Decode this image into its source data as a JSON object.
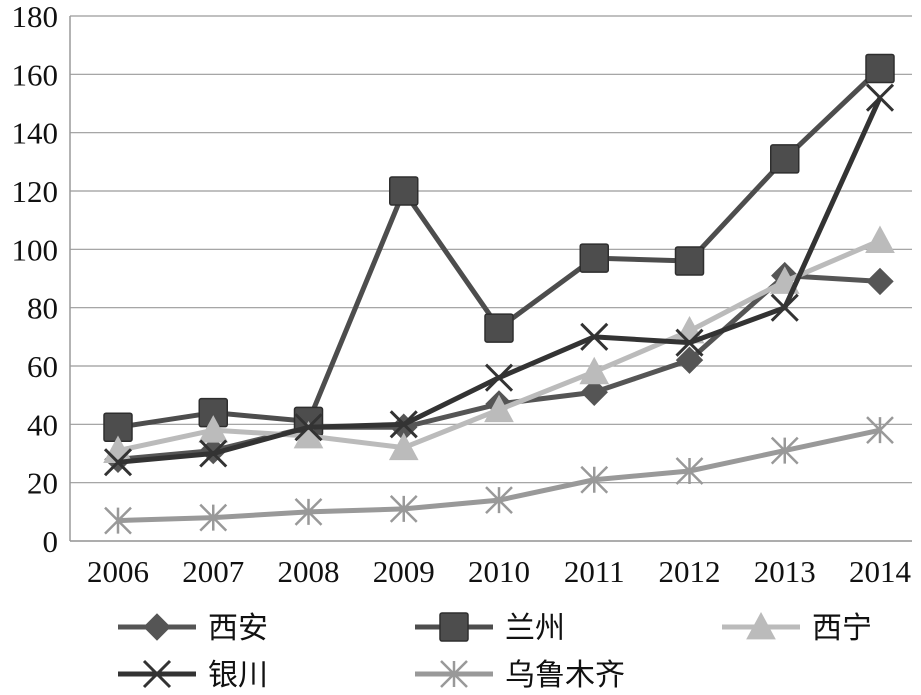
{
  "chart_data": {
    "type": "line",
    "title": "",
    "xlabel": "",
    "ylabel": "",
    "x": [
      "2006",
      "2007",
      "2008",
      "2009",
      "2010",
      "2011",
      "2012",
      "2013",
      "2014"
    ],
    "yticks": [
      "0",
      "20",
      "40",
      "60",
      "80",
      "100",
      "120",
      "140",
      "160",
      "180"
    ],
    "ylim": [
      0,
      180
    ],
    "grid": true,
    "legend_position": "bottom",
    "series": [
      {
        "name": "西安",
        "marker": "diamond",
        "color": "#555555",
        "values": [
          28,
          31,
          39,
          39,
          47,
          51,
          62,
          91,
          89
        ]
      },
      {
        "name": "兰州",
        "marker": "square",
        "color": "#4d4d4d",
        "values": [
          39,
          44,
          41,
          120,
          73,
          97,
          96,
          131,
          162
        ]
      },
      {
        "name": "西宁",
        "marker": "triangle",
        "color": "#bbbbbb",
        "values": [
          31,
          38,
          36,
          32,
          45,
          58,
          72,
          89,
          103
        ]
      },
      {
        "name": "银川",
        "marker": "x",
        "color": "#333333",
        "values": [
          27,
          30,
          39,
          40,
          56,
          70,
          68,
          80,
          152
        ]
      },
      {
        "name": "乌鲁木齐",
        "marker": "asterisk",
        "color": "#999999",
        "values": [
          7,
          8,
          10,
          11,
          14,
          21,
          24,
          31,
          38
        ]
      }
    ]
  }
}
